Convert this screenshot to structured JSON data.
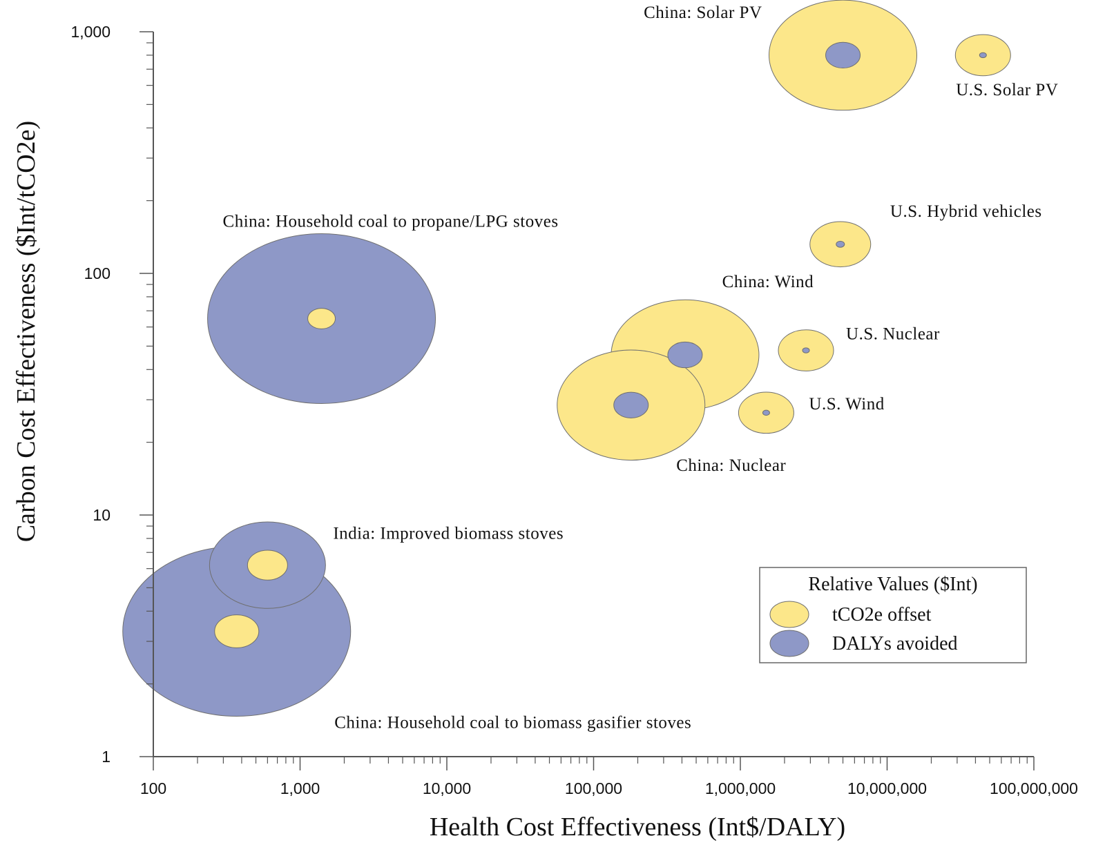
{
  "colors": {
    "tco2e": "#FCE78A",
    "daly": "#8E98C7",
    "stroke": "#6f6f6f",
    "axis": "#555555"
  },
  "chart_data": {
    "type": "bubble",
    "title": "",
    "xlabel": "Health Cost Effectiveness (Int$/DALY)",
    "ylabel": "Carbon Cost Effectiveness ($Int/tCO2e)",
    "xscale": "log",
    "yscale": "log",
    "xlim": [
      100,
      100000000
    ],
    "ylim": [
      1,
      1000
    ],
    "x_ticks": [
      {
        "value": 100,
        "label": "100"
      },
      {
        "value": 1000,
        "label": "1,000"
      },
      {
        "value": 10000,
        "label": "10,000"
      },
      {
        "value": 100000,
        "label": "100,000"
      },
      {
        "value": 1000000,
        "label": "1,000,000"
      },
      {
        "value": 10000000,
        "label": "10,000,000"
      },
      {
        "value": 100000000,
        "label": "100,000,000"
      }
    ],
    "y_ticks": [
      {
        "value": 1,
        "label": "1"
      },
      {
        "value": 10,
        "label": "10"
      },
      {
        "value": 100,
        "label": "100"
      },
      {
        "value": 1000,
        "label": "1,000"
      }
    ],
    "grid": false,
    "legend": {
      "title": "Relative Values ($Int)",
      "position": "bottom-right",
      "entries": [
        {
          "label": "tCO2e offset",
          "color_key": "tco2e"
        },
        {
          "label": "DALYs avoided",
          "color_key": "daly"
        }
      ]
    },
    "points": [
      {
        "name": "China: Household coal to propane/LPG stoves",
        "x": 1400,
        "y": 65,
        "tco2e_size": 20,
        "daly_size": 165,
        "label_anchor": "above"
      },
      {
        "name": "India: Improved biomass stoves",
        "x": 600,
        "y": 6.2,
        "tco2e_size": 29,
        "daly_size": 84,
        "label_anchor": "right"
      },
      {
        "name": "China: Household coal to biomass gasifier stoves",
        "x": 370,
        "y": 3.3,
        "tco2e_size": 32,
        "daly_size": 165,
        "label_anchor": "below"
      },
      {
        "name": "China: Wind",
        "x": 420000,
        "y": 46,
        "tco2e_size": 107,
        "daly_size": 25,
        "label_anchor": "above"
      },
      {
        "name": "China: Nuclear",
        "x": 180000,
        "y": 28.5,
        "tco2e_size": 107,
        "daly_size": 25,
        "label_anchor": "below"
      },
      {
        "name": "U.S. Nuclear",
        "x": 2800000,
        "y": 48,
        "tco2e_size": 40,
        "daly_size": 5,
        "label_anchor": "right"
      },
      {
        "name": "U.S. Wind",
        "x": 1500000,
        "y": 26.5,
        "tco2e_size": 40,
        "daly_size": 5,
        "label_anchor": "right"
      },
      {
        "name": "U.S. Hybrid vehicles",
        "x": 4800000,
        "y": 132,
        "tco2e_size": 44,
        "daly_size": 6,
        "label_anchor": "above"
      },
      {
        "name": "China: Solar PV",
        "x": 5000000,
        "y": 800,
        "tco2e_size": 107,
        "daly_size": 25,
        "label_anchor": "left"
      },
      {
        "name": "U.S. Solar PV",
        "x": 45000000,
        "y": 800,
        "tco2e_size": 40,
        "daly_size": 5,
        "label_anchor": "below"
      }
    ]
  }
}
